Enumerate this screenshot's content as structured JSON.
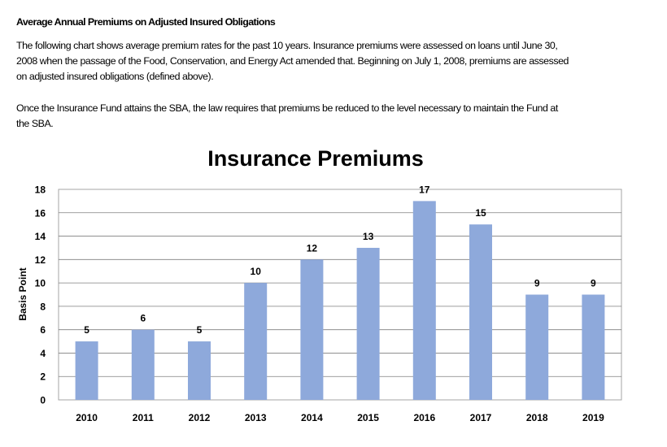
{
  "document": {
    "heading": "Average Annual Premiums on Adjusted Insured Obligations",
    "paragraph1_lines": [
      "The following chart shows average premium rates for the past 10  years. Insurance premiums were assessed on loans until June 30,",
      "2008  when the passage of the Food, Conservation, and Energy Act amended that. Beginning on July 1, 2008,  premiums are assessed",
      "on adjusted insured obligations (defined above)."
    ],
    "paragraph2_lines": [
      "Once the Insurance Fund attains the SBA, the law requires that premiums be reduced to the level necessary to maintain the Fund at",
      "the SBA."
    ]
  },
  "chart_data": {
    "type": "bar",
    "title": "Insurance Premiums",
    "xlabel": "",
    "ylabel": "Basis Point",
    "categories": [
      "2010",
      "2011",
      "2012",
      "2013",
      "2014",
      "2015",
      "2016",
      "2017",
      "2018",
      "2019"
    ],
    "values": [
      5,
      6,
      5,
      10,
      12,
      13,
      17,
      15,
      9,
      9
    ],
    "ylim": [
      0,
      18
    ],
    "yticks": [
      0,
      2,
      4,
      6,
      8,
      10,
      12,
      14,
      16,
      18
    ],
    "grid": true,
    "data_labels": true,
    "bar_color": "#8EA9DB"
  }
}
